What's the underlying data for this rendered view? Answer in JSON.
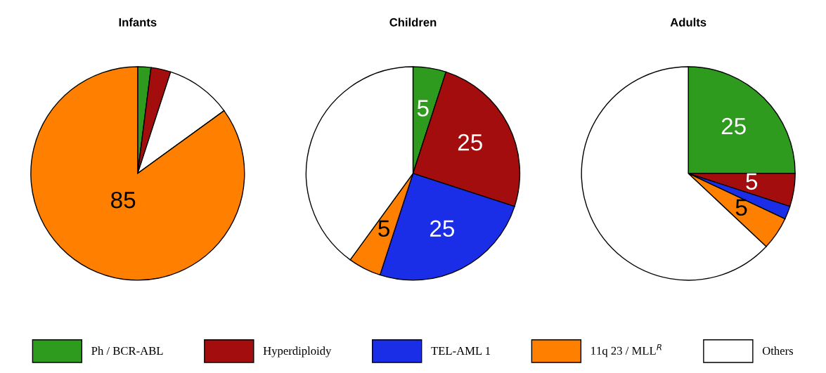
{
  "chart_data": [
    {
      "type": "pie",
      "title": "Infants",
      "categories": [
        null,
        null,
        null,
        null
      ],
      "values": [
        2,
        3,
        10,
        85
      ],
      "colors": [
        "#2e9a1e",
        "#a30d0d",
        "#ffffff",
        "#ff7f00"
      ],
      "value_labels": [
        null,
        null,
        null,
        "85"
      ]
    },
    {
      "type": "pie",
      "title": "Children",
      "categories": [
        "Ph / BCR-ABL",
        "Hyperdiploidy",
        "TEL-AML 1",
        "11q 23 / MLL$^{R}$",
        "Others"
      ],
      "values": [
        5,
        25,
        25,
        5,
        40
      ],
      "colors": [
        "#2e9a1e",
        "#a30d0d",
        "#1a2ee8",
        "#ff7f00",
        "#ffffff"
      ],
      "value_labels": [
        "5",
        "25",
        "25",
        "5",
        null
      ],
      "legend": "bottom"
    },
    {
      "type": "pie",
      "title": "Adults",
      "categories": [
        null,
        null,
        null,
        null,
        null
      ],
      "values": [
        25,
        5,
        2,
        5,
        63
      ],
      "colors": [
        "#2e9a1e",
        "#a30d0d",
        "#1a2ee8",
        "#ff7f00",
        "#ffffff"
      ],
      "value_labels": [
        "25",
        "5",
        null,
        "5",
        null
      ]
    }
  ]
}
